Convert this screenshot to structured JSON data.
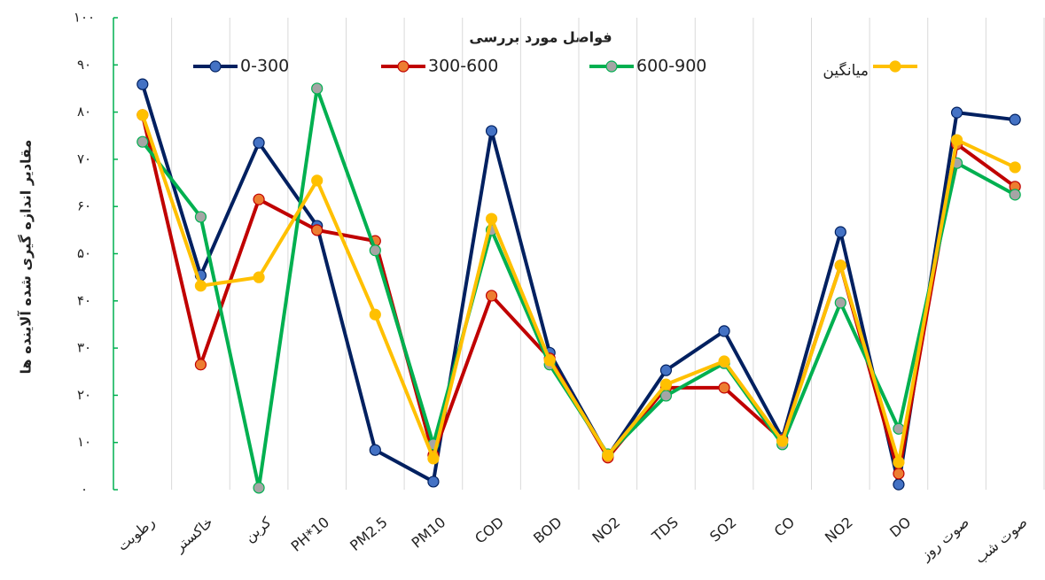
{
  "chart_data": {
    "type": "line",
    "title": "فواصل مورد بررسی",
    "y_label": "مقادیر اندازه گیری شده آلاینده ها",
    "categories": [
      "رطوبت",
      "خاکستر",
      "کربن",
      "PH*10",
      "PM2.5",
      "PM10",
      "COD",
      "BOD",
      "NO2",
      "TDS",
      "SO2",
      "CO",
      "NO2",
      "DO",
      "صوت روز",
      "صوت شب"
    ],
    "series": [
      {
        "name": "0-300",
        "color": "#002060",
        "marker_color": "#4472c4",
        "values": [
          85.9,
          45.4,
          73.5,
          55.9,
          8.4,
          1.7,
          76,
          29,
          7.1,
          25.3,
          33.6,
          10.9,
          54.6,
          1.1,
          79.9,
          78.4
        ]
      },
      {
        "name": "300-600",
        "color": "#c00000",
        "marker_color": "#ed7d31",
        "values": [
          79.4,
          26.5,
          61.5,
          55,
          52.7,
          7.3,
          41.1,
          27.8,
          6.8,
          21.6,
          21.6,
          10.5,
          47.5,
          3.4,
          73.2,
          64.2
        ]
      },
      {
        "name": "600-900",
        "color": "#00b050",
        "marker_color": "#a5a5a5",
        "values": [
          73.7,
          57.8,
          0.4,
          85,
          50.7,
          9.6,
          55,
          26.5,
          7.5,
          19.9,
          26.8,
          9.6,
          39.6,
          12.9,
          69.2,
          62.5
        ]
      },
      {
        "name": "میانگین",
        "color": "#ffc000",
        "marker_color": "#ffc000",
        "values": [
          79.4,
          43.2,
          45,
          65.5,
          37.1,
          6.6,
          57.4,
          27.4,
          7.3,
          22.3,
          27.2,
          10.3,
          47.5,
          5.8,
          74.1,
          68.3
        ]
      }
    ],
    "ylim": [
      0,
      100
    ],
    "yticks": [
      {
        "value": 0,
        "label": "۰"
      },
      {
        "value": 10,
        "label": "۱۰"
      },
      {
        "value": 20,
        "label": "۲۰"
      },
      {
        "value": 30,
        "label": "۳۰"
      },
      {
        "value": 40,
        "label": "۴۰"
      },
      {
        "value": 50,
        "label": "۵۰"
      },
      {
        "value": 60,
        "label": "۶۰"
      },
      {
        "value": 70,
        "label": "۷۰"
      },
      {
        "value": 80,
        "label": "۸۰"
      },
      {
        "value": 90,
        "label": "۹۰"
      },
      {
        "value": 100,
        "label": "۱۰۰"
      }
    ],
    "axis_color": "#00b050"
  }
}
